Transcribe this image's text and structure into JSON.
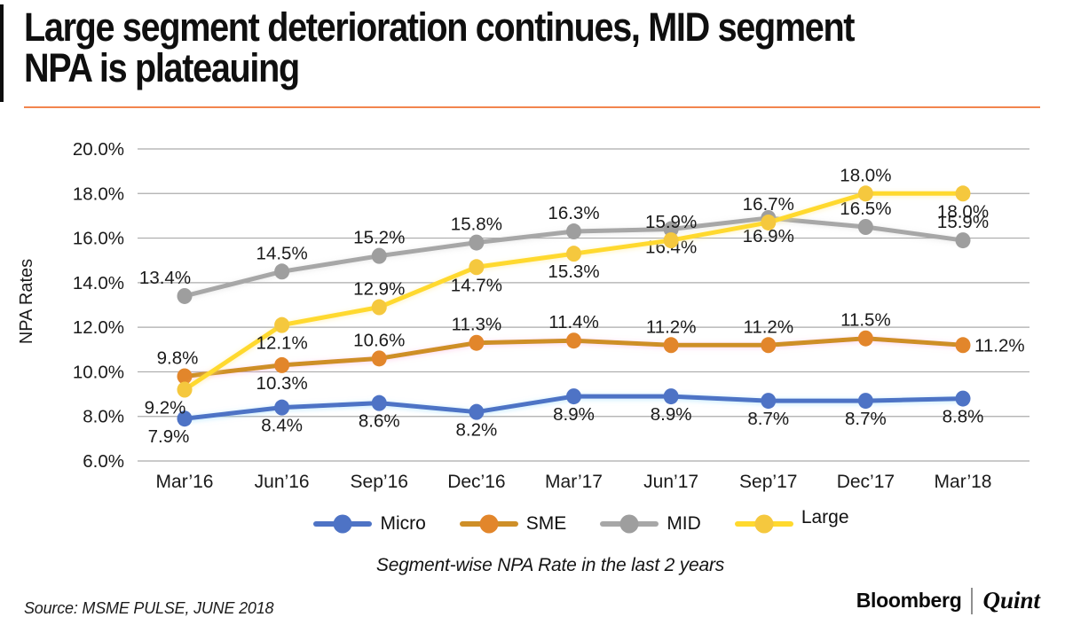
{
  "page": {
    "title_line1": "Large segment deterioration continues, MID segment",
    "title_line2": "NPA is plateauing",
    "source": "Source: MSME PULSE, JUNE 2018",
    "brand": {
      "bloomberg": "Bloomberg",
      "quint": "Quint"
    }
  },
  "chart_data": {
    "type": "line",
    "title": "Large segment deterioration continues, MID segment NPA is plateauing",
    "subtitle": "Segment-wise NPA Rate in the last 2 years",
    "ylabel": "NPA Rates",
    "xlabel": "",
    "categories": [
      "Mar’16",
      "Jun’16",
      "Sep’16",
      "Dec’16",
      "Mar’17",
      "Jun’17",
      "Sep’17",
      "Dec’17",
      "Mar’18"
    ],
    "ylim": [
      6.0,
      20.0
    ],
    "ytick_step": 2.0,
    "ytick_labels": [
      "20.0%",
      "18.0%",
      "16.0%",
      "14.0%",
      "12.0%",
      "10.0%",
      "8.0%",
      "6.0%"
    ],
    "value_format": "percent_one_decimal",
    "grid": true,
    "legend_position": "bottom",
    "series": [
      {
        "name": "Micro",
        "color": "#4E73C5",
        "marker_color": "#4E73C5",
        "glow": "rgba(140,215,255,0.55)",
        "values": [
          7.9,
          8.4,
          8.6,
          8.2,
          8.9,
          8.9,
          8.7,
          8.7,
          8.8
        ],
        "label_pos": [
          "below",
          "below",
          "below",
          "below",
          "below",
          "below",
          "below",
          "below",
          "below"
        ],
        "label_dx": {
          "0": -18
        }
      },
      {
        "name": "SME",
        "color": "#CE8F28",
        "marker_color": "#E2862B",
        "glow": "rgba(255,170,215,0.5)",
        "values": [
          9.8,
          10.3,
          10.6,
          11.3,
          11.4,
          11.2,
          11.2,
          11.5,
          11.2
        ],
        "label_pos": [
          "above",
          "below",
          "above",
          "above",
          "above",
          "above",
          "above",
          "above",
          "right"
        ],
        "label_dx": {
          "0": -8
        }
      },
      {
        "name": "MID",
        "color": "#A7A7A7",
        "marker_color": "#9E9E9E",
        "glow": "rgba(190,190,190,0.35)",
        "values": [
          13.4,
          14.5,
          15.2,
          15.8,
          16.3,
          16.4,
          16.9,
          16.5,
          15.9
        ],
        "label_pos": [
          "above",
          "above",
          "above",
          "above",
          "above",
          "below",
          "below",
          "above",
          "above"
        ],
        "label_dx": {
          "0": -22
        }
      },
      {
        "name": "Large",
        "color": "#FFD92E",
        "marker_color": "#F5C83E",
        "glow": "rgba(255,236,150,0.6)",
        "values": [
          9.2,
          12.1,
          12.9,
          14.7,
          15.3,
          15.9,
          16.7,
          18.0,
          18.0
        ],
        "label_pos": [
          "below",
          "below",
          "above",
          "below",
          "below",
          "above",
          "above",
          "above",
          "below"
        ],
        "label_dx": {
          "0": -22
        }
      }
    ]
  }
}
